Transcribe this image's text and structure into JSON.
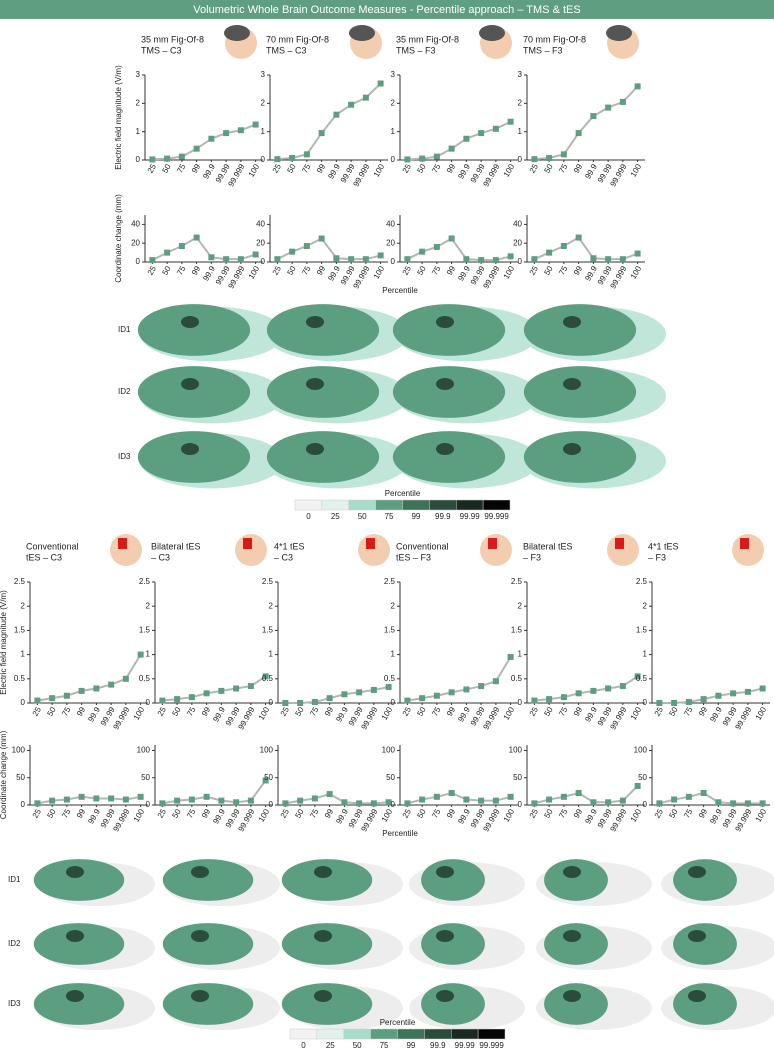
{
  "header": {
    "title": "Volumetric Whole Brain Outcome Measures - Percentile approach – TMS & tES"
  },
  "sections": [
    {
      "x_label": "Percentile",
      "rows": [
        "ID1",
        "ID2",
        "ID3"
      ],
      "colorbar": {
        "title": "Percentile",
        "labels": [
          0,
          25,
          50,
          75,
          99,
          99.9,
          99.99,
          99.999
        ],
        "colors": [
          "#f2f2f2",
          "#e2f1ec",
          "#a8dccb",
          "#5c9e80",
          "#3f7359",
          "#2b4c3b",
          "#1a2a21",
          "#050505"
        ]
      }
    },
    {
      "x_label": "Percentile",
      "rows": [
        "ID1",
        "ID2",
        "ID3"
      ],
      "colorbar": {
        "title": "Percentile",
        "labels": [
          0,
          25,
          50,
          75,
          99,
          99.9,
          99.99,
          99.999
        ],
        "colors": [
          "#f2f2f2",
          "#e2f1ec",
          "#a8dccb",
          "#5c9e80",
          "#3f7359",
          "#2b4c3b",
          "#1a2a21",
          "#050505"
        ]
      }
    }
  ],
  "chart_data": [
    {
      "type": "line",
      "title": [
        "35 mm Fig-Of-8",
        "TMS – C3"
      ],
      "y_label": "Electric field magnitude (V/m)",
      "categories": [
        "25",
        "50",
        "75",
        "99",
        "99.9",
        "99.99",
        "99.999",
        "100"
      ],
      "values": [
        0.02,
        0.05,
        0.12,
        0.4,
        0.75,
        0.95,
        1.05,
        1.25
      ],
      "ylim": [
        0,
        3
      ],
      "yticks": [
        0,
        1,
        2,
        3
      ],
      "color": "#5c9e80",
      "line_color": "#b5b5b5"
    },
    {
      "type": "line",
      "title": [
        "70 mm Fig-Of-8",
        "TMS – C3"
      ],
      "categories": [
        "25",
        "50",
        "75",
        "99",
        "99.9",
        "99.99",
        "99.999",
        "100"
      ],
      "values": [
        0.03,
        0.07,
        0.2,
        0.95,
        1.6,
        1.95,
        2.2,
        2.7
      ],
      "ylim": [
        0,
        3
      ],
      "yticks": [
        0,
        1,
        2,
        3
      ],
      "color": "#5c9e80",
      "line_color": "#b5b5b5"
    },
    {
      "type": "line",
      "title": [
        "35 mm Fig-Of-8",
        "TMS – F3"
      ],
      "categories": [
        "25",
        "50",
        "75",
        "99",
        "99.9",
        "99.99",
        "99.999",
        "100"
      ],
      "values": [
        0.02,
        0.05,
        0.12,
        0.4,
        0.75,
        0.95,
        1.1,
        1.35
      ],
      "ylim": [
        0,
        3
      ],
      "yticks": [
        0,
        1,
        2,
        3
      ],
      "color": "#5c9e80",
      "line_color": "#b5b5b5"
    },
    {
      "type": "line",
      "title": [
        "70 mm Fig-Of-8",
        "TMS – F3"
      ],
      "categories": [
        "25",
        "50",
        "75",
        "99",
        "99.9",
        "99.99",
        "99.999",
        "100"
      ],
      "values": [
        0.03,
        0.07,
        0.2,
        0.95,
        1.55,
        1.85,
        2.05,
        2.6
      ],
      "ylim": [
        0,
        3
      ],
      "yticks": [
        0,
        1,
        2,
        3
      ],
      "color": "#5c9e80",
      "line_color": "#b5b5b5"
    },
    {
      "type": "line",
      "y_label": "Coordinate change (mm)",
      "categories": [
        "25",
        "50",
        "75",
        "99",
        "99.9",
        "99.99",
        "99.999",
        "100"
      ],
      "values": [
        2,
        10,
        17,
        26,
        5,
        3,
        3,
        8
      ],
      "ylim": [
        0,
        50
      ],
      "yticks": [
        0,
        20,
        40
      ],
      "color": "#5c9e80",
      "line_color": "#b5b5b5"
    },
    {
      "type": "line",
      "categories": [
        "25",
        "50",
        "75",
        "99",
        "99.9",
        "99.99",
        "99.999",
        "100"
      ],
      "values": [
        3,
        11,
        17,
        25,
        4,
        3,
        3,
        7
      ],
      "ylim": [
        0,
        50
      ],
      "yticks": [
        0,
        20,
        40
      ],
      "color": "#5c9e80",
      "line_color": "#b5b5b5"
    },
    {
      "type": "line",
      "categories": [
        "25",
        "50",
        "75",
        "99",
        "99.9",
        "99.99",
        "99.999",
        "100"
      ],
      "values": [
        3,
        11,
        16,
        25,
        3,
        2,
        2,
        6
      ],
      "ylim": [
        0,
        50
      ],
      "yticks": [
        0,
        20,
        40
      ],
      "color": "#5c9e80",
      "line_color": "#b5b5b5"
    },
    {
      "type": "line",
      "categories": [
        "25",
        "50",
        "75",
        "99",
        "99.9",
        "99.99",
        "99.999",
        "100"
      ],
      "values": [
        3,
        10,
        17,
        26,
        4,
        3,
        3,
        9
      ],
      "ylim": [
        0,
        50
      ],
      "yticks": [
        0,
        20,
        40
      ],
      "color": "#5c9e80",
      "line_color": "#b5b5b5"
    },
    {
      "type": "line",
      "title": [
        "Conventional",
        "tES – C3"
      ],
      "y_label": "Electric field magnitude (V/m)",
      "categories": [
        "25",
        "50",
        "75",
        "99",
        "99.9",
        "99.99",
        "99.999",
        "100"
      ],
      "values": [
        0.05,
        0.1,
        0.15,
        0.25,
        0.3,
        0.38,
        0.5,
        1.0
      ],
      "ylim": [
        0,
        2.5
      ],
      "yticks": [
        0,
        0.5,
        1,
        1.5,
        2,
        2.5
      ],
      "color": "#5c9e80",
      "line_color": "#b5b5b5"
    },
    {
      "type": "line",
      "title": [
        "Bilateral tES",
        "– C3"
      ],
      "categories": [
        "25",
        "50",
        "75",
        "99",
        "99.9",
        "99.99",
        "99.999",
        "100"
      ],
      "values": [
        0.05,
        0.08,
        0.12,
        0.2,
        0.25,
        0.3,
        0.35,
        0.55
      ],
      "ylim": [
        0,
        2.5
      ],
      "yticks": [
        0,
        0.5,
        1,
        1.5,
        2,
        2.5
      ],
      "color": "#5c9e80",
      "line_color": "#b5b5b5"
    },
    {
      "type": "line",
      "title": [
        "4*1 tES",
        "– C3"
      ],
      "categories": [
        "25",
        "50",
        "75",
        "99",
        "99.9",
        "99.99",
        "99.999",
        "100"
      ],
      "values": [
        0,
        0,
        0.02,
        0.1,
        0.18,
        0.22,
        0.27,
        0.33
      ],
      "ylim": [
        0,
        2.5
      ],
      "yticks": [
        0,
        0.5,
        1,
        1.5,
        2,
        2.5
      ],
      "color": "#5c9e80",
      "line_color": "#b5b5b5"
    },
    {
      "type": "line",
      "title": [
        "Conventional",
        "tES – F3"
      ],
      "categories": [
        "25",
        "50",
        "75",
        "99",
        "99.9",
        "99.99",
        "99.999",
        "100"
      ],
      "values": [
        0.05,
        0.1,
        0.15,
        0.22,
        0.28,
        0.35,
        0.45,
        0.95
      ],
      "ylim": [
        0,
        2.5
      ],
      "yticks": [
        0,
        0.5,
        1,
        1.5,
        2,
        2.5
      ],
      "color": "#5c9e80",
      "line_color": "#b5b5b5"
    },
    {
      "type": "line",
      "title": [
        "Bilateral tES",
        "– F3"
      ],
      "categories": [
        "25",
        "50",
        "75",
        "99",
        "99.9",
        "99.99",
        "99.999",
        "100"
      ],
      "values": [
        0.05,
        0.08,
        0.12,
        0.2,
        0.25,
        0.3,
        0.35,
        0.55
      ],
      "ylim": [
        0,
        2.5
      ],
      "yticks": [
        0,
        0.5,
        1,
        1.5,
        2,
        2.5
      ],
      "color": "#5c9e80",
      "line_color": "#b5b5b5"
    },
    {
      "type": "line",
      "title": [
        "4*1 tES",
        "– F3"
      ],
      "categories": [
        "25",
        "50",
        "75",
        "99",
        "99.9",
        "99.99",
        "99.999",
        "100"
      ],
      "values": [
        0,
        0,
        0.02,
        0.08,
        0.15,
        0.2,
        0.23,
        0.3
      ],
      "ylim": [
        0,
        2.5
      ],
      "yticks": [
        0,
        0.5,
        1,
        1.5,
        2,
        2.5
      ],
      "color": "#5c9e80",
      "line_color": "#b5b5b5"
    },
    {
      "type": "line",
      "y_label": "Coordinate change (mm)",
      "categories": [
        "25",
        "50",
        "75",
        "99",
        "99.9",
        "99.99",
        "99.999",
        "100"
      ],
      "values": [
        3,
        8,
        10,
        15,
        12,
        12,
        10,
        15
      ],
      "ylim": [
        0,
        110
      ],
      "yticks": [
        0,
        50,
        100
      ],
      "color": "#5c9e80",
      "line_color": "#b5b5b5"
    },
    {
      "type": "line",
      "categories": [
        "25",
        "50",
        "75",
        "99",
        "99.9",
        "99.99",
        "99.999",
        "100"
      ],
      "values": [
        3,
        8,
        10,
        15,
        8,
        5,
        8,
        45
      ],
      "ylim": [
        0,
        110
      ],
      "yticks": [
        0,
        50,
        100
      ],
      "color": "#5c9e80",
      "line_color": "#b5b5b5"
    },
    {
      "type": "line",
      "categories": [
        "25",
        "50",
        "75",
        "99",
        "99.9",
        "99.99",
        "99.999",
        "100"
      ],
      "values": [
        3,
        8,
        12,
        20,
        5,
        3,
        3,
        5
      ],
      "ylim": [
        0,
        110
      ],
      "yticks": [
        0,
        50,
        100
      ],
      "color": "#5c9e80",
      "line_color": "#b5b5b5"
    },
    {
      "type": "line",
      "categories": [
        "25",
        "50",
        "75",
        "99",
        "99.9",
        "99.99",
        "99.999",
        "100"
      ],
      "values": [
        3,
        10,
        15,
        22,
        10,
        8,
        8,
        15
      ],
      "ylim": [
        0,
        110
      ],
      "yticks": [
        0,
        50,
        100
      ],
      "color": "#5c9e80",
      "line_color": "#b5b5b5"
    },
    {
      "type": "line",
      "categories": [
        "25",
        "50",
        "75",
        "99",
        "99.9",
        "99.99",
        "99.999",
        "100"
      ],
      "values": [
        3,
        10,
        15,
        22,
        5,
        5,
        8,
        35
      ],
      "ylim": [
        0,
        110
      ],
      "yticks": [
        0,
        50,
        100
      ],
      "color": "#5c9e80",
      "line_color": "#b5b5b5"
    },
    {
      "type": "line",
      "categories": [
        "25",
        "50",
        "75",
        "99",
        "99.9",
        "99.99",
        "99.999",
        "100"
      ],
      "values": [
        3,
        10,
        15,
        22,
        5,
        3,
        3,
        3
      ],
      "ylim": [
        0,
        110
      ],
      "yticks": [
        0,
        50,
        100
      ],
      "color": "#5c9e80",
      "line_color": "#b5b5b5"
    }
  ]
}
